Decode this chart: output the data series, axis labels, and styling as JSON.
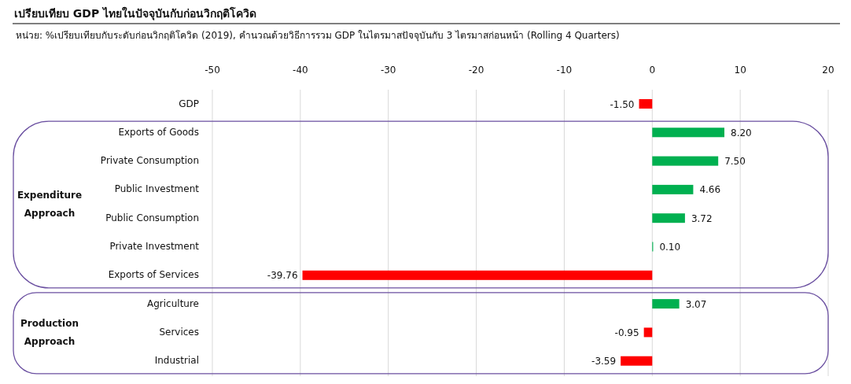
{
  "chart_data": {
    "type": "bar",
    "orientation": "horizontal",
    "title": "เปรียบเทียบ GDP ไทยในปัจจุบันกับก่อนวิกฤติโควิด",
    "subtitle": "หน่วย: %เปรียบเทียบกับระดับก่อนวิกฤติโควิด (2019), คำนวณด้วยวิธีการรวม GDP ในไตรมาสปัจจุบันกับ 3 ไตรมาสก่อนหน้า (Rolling 4 Quarters)",
    "categories": [
      "GDP",
      "Exports of Goods",
      "Private Consumption",
      "Public Investment",
      "Public Consumption",
      "Private Investment",
      "Exports of Services",
      "Agriculture",
      "Services",
      "Industrial"
    ],
    "values": [
      -1.5,
      8.2,
      7.5,
      4.66,
      3.72,
      0.1,
      -39.76,
      3.07,
      -0.95,
      -3.59
    ],
    "value_labels": [
      "-1.50",
      "8.20",
      "7.50",
      "4.66",
      "3.72",
      "0.10",
      "-39.76",
      "3.07",
      "-0.95",
      "-3.59"
    ],
    "colors": [
      "#ff0000",
      "#00b050",
      "#00b050",
      "#00b050",
      "#00b050",
      "#00b050",
      "#ff0000",
      "#00b050",
      "#ff0000",
      "#ff0000"
    ],
    "xlim": [
      -50,
      20
    ],
    "xticks": [
      -50,
      -40,
      -30,
      -20,
      -10,
      0,
      10,
      20
    ],
    "grid": "x",
    "annotations": [
      "Expenditure Approach",
      "Production Approach"
    ]
  }
}
